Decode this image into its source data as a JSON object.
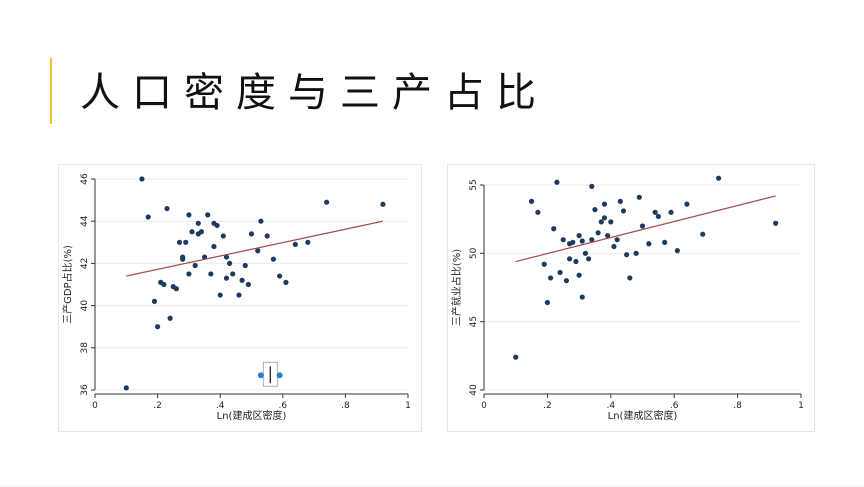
{
  "slide": {
    "title": "人口密度与三产占比",
    "accent_color": "#f2c230"
  },
  "chart_data": [
    {
      "type": "scatter",
      "xlabel": "Ln(建成区密度)",
      "ylabel": "三产GDP占比(%)",
      "xlim": [
        0,
        1
      ],
      "ylim": [
        36,
        46
      ],
      "xticks": [
        0,
        0.2,
        0.4,
        0.6,
        0.8,
        1
      ],
      "xtick_labels": [
        "0",
        ".2",
        ".4",
        ".6",
        ".8",
        "1"
      ],
      "yticks": [
        36,
        38,
        40,
        42,
        44,
        46
      ],
      "ytick_labels": [
        "36",
        "38",
        "40",
        "42",
        "44",
        "46"
      ],
      "point_color": "#1f3a5f",
      "fit_color": "#a0484a",
      "fit_line": {
        "x": [
          0.1,
          0.92
        ],
        "y": [
          41.4,
          44.0
        ]
      },
      "grid": true,
      "points": [
        [
          0.1,
          36.1
        ],
        [
          0.15,
          46.0
        ],
        [
          0.17,
          44.2
        ],
        [
          0.19,
          40.2
        ],
        [
          0.2,
          39.0
        ],
        [
          0.21,
          41.1
        ],
        [
          0.22,
          41.0
        ],
        [
          0.23,
          44.6
        ],
        [
          0.24,
          39.4
        ],
        [
          0.25,
          40.9
        ],
        [
          0.26,
          40.8
        ],
        [
          0.27,
          43.0
        ],
        [
          0.28,
          42.2
        ],
        [
          0.28,
          42.3
        ],
        [
          0.29,
          43.0
        ],
        [
          0.3,
          44.3
        ],
        [
          0.3,
          41.5
        ],
        [
          0.31,
          43.5
        ],
        [
          0.32,
          41.9
        ],
        [
          0.33,
          43.4
        ],
        [
          0.33,
          43.9
        ],
        [
          0.34,
          43.5
        ],
        [
          0.35,
          42.3
        ],
        [
          0.36,
          44.3
        ],
        [
          0.37,
          41.5
        ],
        [
          0.38,
          42.8
        ],
        [
          0.38,
          43.9
        ],
        [
          0.39,
          43.8
        ],
        [
          0.4,
          40.5
        ],
        [
          0.41,
          43.3
        ],
        [
          0.42,
          41.3
        ],
        [
          0.42,
          42.3
        ],
        [
          0.43,
          42.0
        ],
        [
          0.44,
          41.5
        ],
        [
          0.46,
          40.5
        ],
        [
          0.47,
          41.2
        ],
        [
          0.48,
          41.9
        ],
        [
          0.49,
          41.0
        ],
        [
          0.5,
          43.4
        ],
        [
          0.52,
          42.6
        ],
        [
          0.53,
          44.0
        ],
        [
          0.55,
          43.3
        ],
        [
          0.57,
          42.2
        ],
        [
          0.59,
          41.4
        ],
        [
          0.61,
          41.1
        ],
        [
          0.64,
          42.9
        ],
        [
          0.68,
          43.0
        ],
        [
          0.74,
          44.9
        ],
        [
          0.92,
          44.8
        ]
      ],
      "highlight_points": [
        [
          0.53,
          36.7
        ],
        [
          0.59,
          36.7
        ]
      ],
      "highlight_color": "#2a7fd4"
    },
    {
      "type": "scatter",
      "xlabel": "Ln(建成区密度)",
      "ylabel": "三产就业占比(%)",
      "xlim": [
        0,
        1
      ],
      "ylim": [
        40,
        55
      ],
      "xticks": [
        0,
        0.2,
        0.4,
        0.6,
        0.8,
        1
      ],
      "xtick_labels": [
        "0",
        ".2",
        ".4",
        ".6",
        ".8",
        "1"
      ],
      "yticks": [
        40,
        45,
        50,
        55
      ],
      "ytick_labels": [
        "40",
        "45",
        "50",
        "55"
      ],
      "point_color": "#1f3a5f",
      "fit_color": "#a0484a",
      "fit_line": {
        "x": [
          0.1,
          0.92
        ],
        "y": [
          49.4,
          54.2
        ]
      },
      "grid": true,
      "points": [
        [
          0.1,
          42.4
        ],
        [
          0.15,
          53.8
        ],
        [
          0.17,
          53.0
        ],
        [
          0.19,
          49.2
        ],
        [
          0.2,
          46.4
        ],
        [
          0.21,
          48.2
        ],
        [
          0.22,
          51.8
        ],
        [
          0.23,
          55.2
        ],
        [
          0.24,
          48.6
        ],
        [
          0.25,
          51.0
        ],
        [
          0.26,
          48.0
        ],
        [
          0.27,
          50.7
        ],
        [
          0.27,
          49.6
        ],
        [
          0.28,
          50.8
        ],
        [
          0.29,
          49.4
        ],
        [
          0.3,
          48.4
        ],
        [
          0.3,
          51.3
        ],
        [
          0.31,
          50.9
        ],
        [
          0.31,
          46.8
        ],
        [
          0.32,
          50.0
        ],
        [
          0.33,
          49.6
        ],
        [
          0.34,
          51.0
        ],
        [
          0.34,
          54.9
        ],
        [
          0.35,
          53.2
        ],
        [
          0.36,
          51.5
        ],
        [
          0.37,
          52.3
        ],
        [
          0.38,
          53.6
        ],
        [
          0.38,
          52.6
        ],
        [
          0.39,
          51.3
        ],
        [
          0.4,
          52.3
        ],
        [
          0.41,
          50.5
        ],
        [
          0.42,
          51.0
        ],
        [
          0.43,
          53.8
        ],
        [
          0.44,
          53.1
        ],
        [
          0.45,
          49.9
        ],
        [
          0.46,
          48.2
        ],
        [
          0.48,
          50.0
        ],
        [
          0.49,
          54.1
        ],
        [
          0.5,
          52.0
        ],
        [
          0.52,
          50.7
        ],
        [
          0.54,
          53.0
        ],
        [
          0.55,
          52.7
        ],
        [
          0.57,
          50.8
        ],
        [
          0.59,
          53.0
        ],
        [
          0.61,
          50.2
        ],
        [
          0.64,
          53.6
        ],
        [
          0.69,
          51.4
        ],
        [
          0.74,
          55.5
        ],
        [
          0.92,
          52.2
        ]
      ]
    }
  ]
}
